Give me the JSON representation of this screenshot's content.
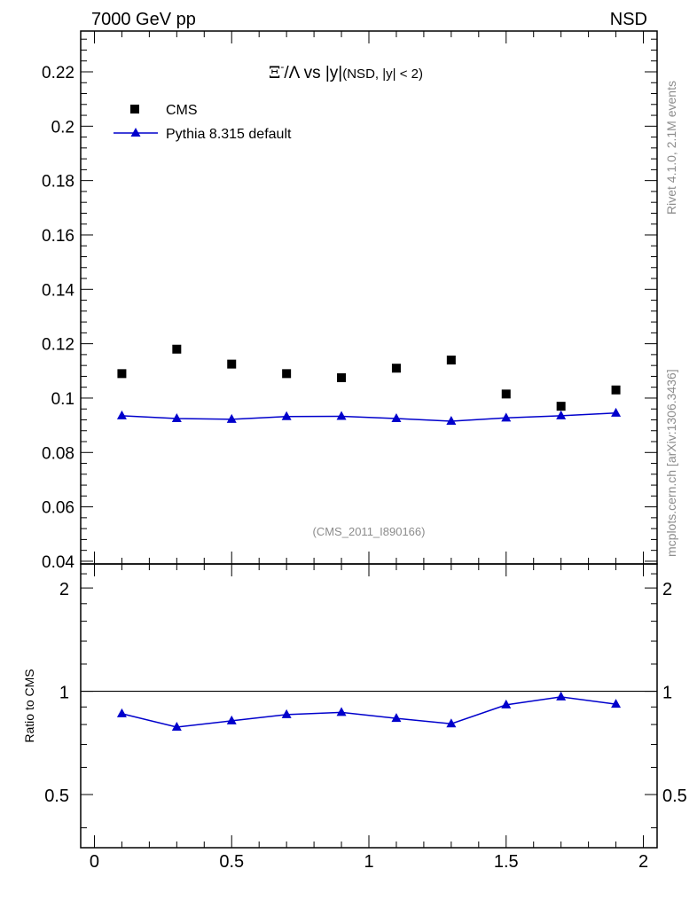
{
  "header": {
    "left": "7000 GeV pp",
    "right": "NSD"
  },
  "side_text": {
    "rivet": "Rivet 4.1.0,  2.1M events",
    "mcplots": "mcplots.cern.ch [arXiv:1306.3436]"
  },
  "colors": {
    "data": "#000000",
    "mc": "#0000cc",
    "ref_line": "#000000",
    "watermark": "#8c8c8c"
  },
  "chart_data": [
    {
      "type": "scatter",
      "panel": "main",
      "title": {
        "symbol": "Ξ",
        "superscript": "-",
        "rest": "/Λ vs |y|",
        "small": "(NSD, |y| < 2)"
      },
      "watermark": "(CMS_2011_I890166)",
      "xlabel": "",
      "ylabel": "",
      "xlim": [
        -0.05,
        2.05
      ],
      "ylim": [
        0.039,
        0.235
      ],
      "yticks": [
        0.04,
        0.06,
        0.08,
        0.1,
        0.12,
        0.14,
        0.16,
        0.18,
        0.2,
        0.22
      ],
      "ytick_labels": [
        "0.04",
        "0.06",
        "0.08",
        "0.1",
        "0.12",
        "0.14",
        "0.16",
        "0.18",
        "0.2",
        "0.22"
      ],
      "legend_position": "top-left",
      "x": [
        0.1,
        0.3,
        0.5,
        0.7,
        0.9,
        1.1,
        1.3,
        1.5,
        1.7,
        1.9
      ],
      "series": [
        {
          "name": "CMS",
          "marker": "square",
          "values": [
            0.109,
            0.118,
            0.1125,
            0.109,
            0.1075,
            0.111,
            0.114,
            0.1015,
            0.097,
            0.103
          ]
        },
        {
          "name": "Pythia 8.315 default",
          "marker": "triangle",
          "line": true,
          "values": [
            0.0935,
            0.0925,
            0.0922,
            0.0932,
            0.0933,
            0.0925,
            0.0915,
            0.0927,
            0.0935,
            0.0945
          ]
        }
      ]
    },
    {
      "type": "line",
      "panel": "ratio",
      "ylabel": "Ratio to CMS",
      "xlim": [
        -0.05,
        2.05
      ],
      "ylim": [
        0.35,
        2.35
      ],
      "yticks": [
        0.5,
        1,
        2
      ],
      "ytick_labels": [
        "0.5",
        "1",
        "2"
      ],
      "xticks": [
        0,
        0.5,
        1,
        1.5,
        2
      ],
      "xtick_labels": [
        "0",
        "0.5",
        "1",
        "1.5",
        "2"
      ],
      "reference": 1,
      "x": [
        0.1,
        0.3,
        0.5,
        0.7,
        0.9,
        1.1,
        1.3,
        1.5,
        1.7,
        1.9
      ],
      "series": [
        {
          "name": "Pythia 8.315 default",
          "values": [
            0.86,
            0.786,
            0.82,
            0.855,
            0.868,
            0.834,
            0.804,
            0.913,
            0.963,
            0.917
          ]
        }
      ]
    }
  ]
}
